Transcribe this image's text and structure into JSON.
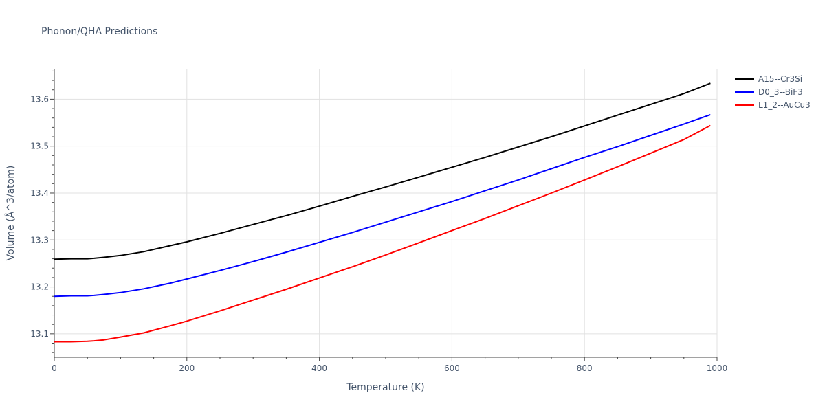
{
  "chart_data": {
    "type": "line",
    "title": "Phonon/QHA Predictions",
    "xlabel": "Temperature (K)",
    "ylabel": "Volume (Å^3/atom)",
    "xlim": [
      0,
      1000
    ],
    "ylim": [
      13.05,
      13.665
    ],
    "xticks": [
      0,
      200,
      400,
      600,
      800,
      1000
    ],
    "yticks": [
      13.1,
      13.2,
      13.3,
      13.4,
      13.5,
      13.6
    ],
    "xtick_labels": [
      "0",
      "200",
      "400",
      "600",
      "800",
      "1000"
    ],
    "ytick_labels": [
      "13.1",
      "13.2",
      "13.3",
      "13.4",
      "13.5",
      "13.6"
    ],
    "grid": true,
    "legend": "top-right",
    "series": [
      {
        "name": "A15--Cr3Si",
        "color": "#000000",
        "x": [
          0,
          25,
          50,
          60,
          75,
          100,
          135,
          175,
          200,
          250,
          300,
          350,
          400,
          450,
          500,
          550,
          600,
          650,
          700,
          750,
          800,
          850,
          900,
          950,
          990
        ],
        "y": [
          13.259,
          13.26,
          13.26,
          13.261,
          13.263,
          13.267,
          13.275,
          13.288,
          13.296,
          13.314,
          13.333,
          13.352,
          13.372,
          13.393,
          13.413,
          13.434,
          13.455,
          13.476,
          13.498,
          13.52,
          13.543,
          13.566,
          13.589,
          13.612,
          13.634
        ]
      },
      {
        "name": "D0_3--BiF3",
        "color": "#0000ff",
        "x": [
          0,
          25,
          50,
          60,
          75,
          100,
          135,
          175,
          200,
          250,
          300,
          350,
          400,
          450,
          500,
          550,
          600,
          650,
          700,
          750,
          800,
          850,
          900,
          950,
          990
        ],
        "y": [
          13.18,
          13.181,
          13.181,
          13.182,
          13.184,
          13.188,
          13.196,
          13.208,
          13.217,
          13.235,
          13.254,
          13.274,
          13.295,
          13.316,
          13.338,
          13.36,
          13.382,
          13.405,
          13.428,
          13.452,
          13.476,
          13.499,
          13.523,
          13.547,
          13.567
        ]
      },
      {
        "name": "L1_2--AuCu3",
        "color": "#ff0000",
        "x": [
          0,
          25,
          50,
          60,
          75,
          100,
          135,
          175,
          200,
          250,
          300,
          350,
          400,
          450,
          500,
          550,
          600,
          650,
          700,
          750,
          800,
          850,
          900,
          950,
          990
        ],
        "y": [
          13.083,
          13.083,
          13.084,
          13.085,
          13.087,
          13.093,
          13.102,
          13.117,
          13.127,
          13.149,
          13.172,
          13.195,
          13.219,
          13.243,
          13.268,
          13.294,
          13.32,
          13.346,
          13.373,
          13.4,
          13.428,
          13.456,
          13.485,
          13.514,
          13.544
        ]
      }
    ]
  }
}
